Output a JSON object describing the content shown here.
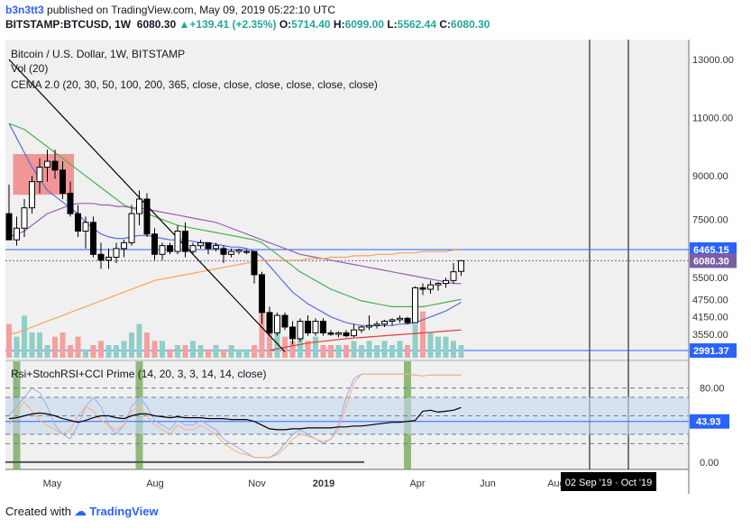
{
  "header": {
    "user": "b3n3tt3",
    "published_text": "published on TradingView.com, May 09, 2019 05:22:10 UTC",
    "symbol": "BITSTAMP:BTCUSD, 1W",
    "last_price": "6080.30",
    "change": "+139.41 (+2.35%)",
    "o_label": "O:",
    "o": "5714.40",
    "h_label": "H:",
    "h": "6099.00",
    "l_label": "L:",
    "l": "5562.44",
    "c_label": "C:",
    "c": "6080.30"
  },
  "main_pane": {
    "title": "Bitcoin / U.S. Dollar, 1W, BITSTAMP",
    "volume_label": "Vol (20)",
    "indicator_label": "CEMA 2.0 (20, 30, 50, 100, 200, 365, close, close, close, close, close, close)",
    "price_ticks": [
      "13000.00",
      "11000.00",
      "9000.00",
      "7500.00",
      "5500.00",
      "4750.00",
      "4150.00",
      "3550.00"
    ],
    "badges": {
      "level_upper": "6465.15",
      "last": "6080.30",
      "level_lower": "2991.37"
    }
  },
  "osc_pane": {
    "label": "Rsi+StochRSI+CCI Prime (14, 20, 3, 3, 14, 14, close)",
    "ticks": [
      "80.00",
      "0.00"
    ],
    "value_badge": "43.93"
  },
  "time_axis": {
    "labels": [
      "May",
      "Aug",
      "Nov",
      "2019",
      "Apr",
      "Jun",
      "Aug"
    ],
    "range_label": "02 Sep '19 · Oct '19"
  },
  "footer": {
    "created_with": "Created with",
    "brand": "TradingView"
  },
  "colors": {
    "up": "#26a69a",
    "down": "#ef5350",
    "level_line": "#2962ff",
    "badge_last": "#7b5ea7",
    "ema_blue": "#5b6be0",
    "ema_purple": "#9c5eb5",
    "ema_green": "#4caf50",
    "ema_orange": "#f7a35c",
    "ema_red": "#e53935"
  },
  "chart_data": {
    "type": "candlestick",
    "interval": "1W",
    "ylim": [
      2900,
      13500
    ],
    "ohlc": [
      [
        7700,
        8700,
        6800,
        6800
      ],
      [
        6800,
        7600,
        6600,
        7200
      ],
      [
        7200,
        8200,
        6900,
        7900
      ],
      [
        7900,
        9000,
        7700,
        8800
      ],
      [
        8800,
        9600,
        8400,
        9300
      ],
      [
        9300,
        9900,
        8800,
        9500
      ],
      [
        9500,
        9900,
        8900,
        9200
      ],
      [
        9200,
        9500,
        8200,
        8400
      ],
      [
        8400,
        8800,
        7600,
        7700
      ],
      [
        7700,
        8000,
        6900,
        7100
      ],
      [
        7100,
        7600,
        6500,
        7400
      ],
      [
        7400,
        7600,
        6200,
        6300
      ],
      [
        6300,
        6700,
        5800,
        6100
      ],
      [
        6100,
        6500,
        5800,
        6200
      ],
      [
        6200,
        6700,
        6000,
        6500
      ],
      [
        6500,
        6800,
        6200,
        6700
      ],
      [
        6700,
        8000,
        6600,
        7700
      ],
      [
        7700,
        8500,
        7300,
        8200
      ],
      [
        8200,
        8400,
        6900,
        7000
      ],
      [
        7000,
        7200,
        6100,
        6300
      ],
      [
        6300,
        6700,
        6100,
        6600
      ],
      [
        6600,
        6700,
        6300,
        6400
      ],
      [
        6400,
        7300,
        6300,
        7100
      ],
      [
        7100,
        7400,
        6200,
        6400
      ],
      [
        6400,
        6700,
        6300,
        6600
      ],
      [
        6600,
        6800,
        6500,
        6700
      ],
      [
        6700,
        6700,
        6300,
        6500
      ],
      [
        6500,
        6700,
        6400,
        6600
      ],
      [
        6500,
        6600,
        6000,
        6300
      ],
      [
        6300,
        6500,
        6200,
        6400
      ],
      [
        6400,
        6500,
        6300,
        6450
      ],
      [
        6400,
        6450,
        6300,
        6400
      ],
      [
        6400,
        6400,
        5300,
        5600
      ],
      [
        5600,
        5700,
        3900,
        4300
      ],
      [
        4300,
        4500,
        3500,
        3600
      ],
      [
        3600,
        4300,
        3500,
        4200
      ],
      [
        4200,
        4300,
        3700,
        3800
      ],
      [
        3800,
        4000,
        3200,
        3400
      ],
      [
        3400,
        4100,
        3300,
        4000
      ],
      [
        4000,
        4200,
        3500,
        3600
      ],
      [
        3600,
        4100,
        3500,
        4000
      ],
      [
        4000,
        4100,
        3500,
        3600
      ],
      [
        3600,
        3700,
        3500,
        3550
      ],
      [
        3550,
        3650,
        3450,
        3600
      ],
      [
        3600,
        3700,
        3450,
        3500
      ],
      [
        3500,
        3900,
        3450,
        3700
      ],
      [
        3700,
        3850,
        3600,
        3800
      ],
      [
        3800,
        4200,
        3700,
        3850
      ],
      [
        3850,
        4000,
        3750,
        3900
      ],
      [
        3900,
        4050,
        3800,
        4000
      ],
      [
        4000,
        4100,
        3850,
        4050
      ],
      [
        4050,
        4200,
        3950,
        4100
      ],
      [
        4100,
        4150,
        3900,
        3950
      ],
      [
        3950,
        5200,
        3950,
        5150
      ],
      [
        5150,
        5300,
        4900,
        5100
      ],
      [
        5100,
        5400,
        4950,
        5250
      ],
      [
        5250,
        5350,
        5050,
        5300
      ],
      [
        5300,
        5500,
        5150,
        5400
      ],
      [
        5400,
        6000,
        5300,
        5700
      ],
      [
        5714.4,
        6099,
        5562.44,
        6080.3
      ]
    ],
    "volume": [
      8,
      5,
      10,
      6,
      6,
      3,
      5,
      6,
      3,
      5,
      2,
      3,
      4,
      3,
      3,
      4,
      6,
      8,
      6,
      4,
      4,
      2,
      3,
      3,
      4,
      3,
      2,
      3,
      2,
      3,
      2,
      2,
      3,
      15,
      9,
      6,
      5,
      4,
      6,
      4,
      5,
      3,
      3,
      3,
      3,
      4,
      3,
      4,
      3,
      4,
      3,
      4,
      3,
      8,
      11,
      6,
      5,
      5,
      4,
      3
    ],
    "horizontal_levels": [
      6465.15,
      2991.37
    ],
    "trendline": {
      "from": [
        0,
        13000
      ],
      "to": [
        36,
        2950
      ]
    },
    "highlight_box": {
      "from_bar": 1,
      "to_bar": 8,
      "price_range": [
        8350,
        9750
      ]
    },
    "ema_series": [
      {
        "name": "EMA 20",
        "color": "#5b6be0",
        "values": [
          10800,
          10300,
          9800,
          9300,
          8900,
          8500,
          8300,
          8100,
          7900,
          7700,
          7400,
          7200,
          7000,
          6900,
          6850,
          6850,
          6900,
          6950,
          6950,
          6900,
          6850,
          6800,
          6800,
          6800,
          6750,
          6700,
          6700,
          6650,
          6600,
          6550,
          6550,
          6500,
          6400,
          6200,
          5900,
          5600,
          5300,
          5000,
          4800,
          4600,
          4450,
          4300,
          4150,
          4050,
          3950,
          3900,
          3850,
          3850,
          3850,
          3850,
          3850,
          3900,
          3900,
          3950,
          4050,
          4150,
          4250,
          4350,
          4500,
          4650
        ]
      },
      {
        "name": "EMA 30",
        "color": "#4caf50",
        "values": [
          10800,
          10700,
          10600,
          10400,
          10200,
          10000,
          9800,
          9600,
          9400,
          9200,
          9000,
          8800,
          8600,
          8400,
          8200,
          8000,
          7900,
          7800,
          7700,
          7600,
          7500,
          7400,
          7300,
          7250,
          7200,
          7150,
          7100,
          7050,
          7000,
          6950,
          6900,
          6850,
          6800,
          6700,
          6500,
          6300,
          6100,
          5900,
          5700,
          5550,
          5400,
          5250,
          5100,
          5000,
          4900,
          4800,
          4700,
          4650,
          4600,
          4550,
          4500,
          4500,
          4500,
          4500,
          4500,
          4550,
          4600,
          4650,
          4700,
          4750
        ]
      },
      {
        "name": "EMA 50",
        "color": "#9c5eb5",
        "values": [
          6900,
          7000,
          7100,
          7300,
          7500,
          7700,
          7800,
          7900,
          8000,
          8050,
          8050,
          8050,
          8000,
          8000,
          7950,
          7950,
          7900,
          7900,
          7850,
          7800,
          7750,
          7700,
          7650,
          7600,
          7550,
          7500,
          7450,
          7400,
          7300,
          7200,
          7100,
          7000,
          6900,
          6800,
          6700,
          6600,
          6500,
          6400,
          6300,
          6250,
          6200,
          6150,
          6100,
          6050,
          6000,
          5950,
          5900,
          5850,
          5800,
          5750,
          5700,
          5650,
          5600,
          5550,
          5500,
          5450,
          5400,
          5350,
          5300,
          5300
        ]
      },
      {
        "name": "EMA 100",
        "color": "#f7a35c",
        "values": [
          3550,
          3600,
          3700,
          3800,
          3900,
          4000,
          4100,
          4200,
          4300,
          4400,
          4500,
          4600,
          4700,
          4800,
          4900,
          5000,
          5100,
          5200,
          5300,
          5400,
          5450,
          5500,
          5550,
          5600,
          5650,
          5700,
          5750,
          5800,
          5850,
          5900,
          5950,
          6000,
          6050,
          6100,
          6100,
          6100,
          6100,
          6100,
          6100,
          6150,
          6150,
          6150,
          6200,
          6200,
          6200,
          6250,
          6250,
          6250,
          6300,
          6300,
          6300,
          6350,
          6350,
          6350,
          6400,
          6400,
          6400,
          6400,
          6450,
          6450
        ]
      },
      {
        "name": "EMA 200",
        "color": "#e53935",
        "values": [
          null,
          null,
          null,
          null,
          null,
          null,
          null,
          null,
          null,
          null,
          null,
          null,
          null,
          null,
          null,
          null,
          null,
          null,
          null,
          null,
          null,
          null,
          null,
          null,
          null,
          null,
          null,
          null,
          null,
          null,
          null,
          null,
          null,
          null,
          3000,
          3050,
          3100,
          3150,
          3200,
          3250,
          3280,
          3310,
          3340,
          3370,
          3400,
          3420,
          3440,
          3460,
          3480,
          3500,
          3520,
          3540,
          3560,
          3580,
          3600,
          3620,
          3640,
          3660,
          3680,
          3700
        ]
      }
    ],
    "oscillator": {
      "ylim": [
        -5,
        105
      ],
      "bands": [
        80,
        70,
        50,
        43.93,
        30,
        20
      ],
      "rsi": [
        47,
        48,
        50,
        52,
        53,
        52,
        50,
        47,
        45,
        43,
        45,
        48,
        50,
        50,
        48,
        47,
        50,
        52,
        52,
        50,
        49,
        48,
        49,
        48,
        48,
        48,
        47,
        47,
        47,
        46,
        46,
        46,
        44,
        40,
        36,
        35,
        35,
        36,
        36,
        37,
        37,
        37,
        37,
        38,
        38,
        39,
        39,
        40,
        41,
        42,
        43,
        43,
        44,
        45,
        55,
        56,
        54,
        55,
        56,
        59
      ],
      "stoch": [
        50,
        60,
        70,
        80,
        75,
        60,
        40,
        30,
        25,
        40,
        60,
        70,
        60,
        40,
        30,
        40,
        60,
        70,
        60,
        45,
        40,
        35,
        45,
        40,
        40,
        45,
        40,
        35,
        25,
        20,
        15,
        10,
        5,
        5,
        5,
        10,
        20,
        30,
        35,
        30,
        25,
        20,
        25,
        40,
        70,
        90,
        95,
        95,
        95,
        95,
        95,
        95,
        95,
        94,
        93,
        94,
        94,
        94,
        94,
        94
      ],
      "cci": [
        40,
        55,
        65,
        55,
        45,
        40,
        35,
        30,
        35,
        50,
        60,
        55,
        45,
        40,
        35,
        40,
        55,
        60,
        50,
        40,
        35,
        30,
        40,
        35,
        35,
        40,
        35,
        30,
        20,
        15,
        10,
        8,
        5,
        5,
        5,
        8,
        15,
        25,
        30,
        28,
        25,
        22,
        25,
        35,
        60,
        85,
        95,
        95,
        95,
        95,
        95,
        95,
        95,
        94,
        93,
        94,
        94,
        94,
        94,
        94
      ],
      "highlight_bars": [
        1,
        17,
        52
      ]
    }
  }
}
